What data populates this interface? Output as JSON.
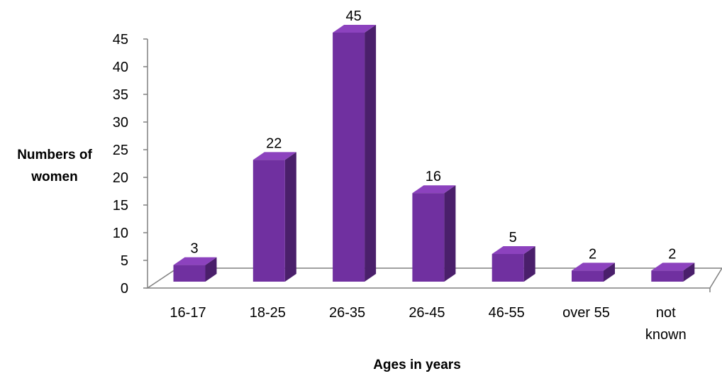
{
  "chart_data": {
    "type": "bar",
    "style": "3d-column",
    "categories": [
      "16-17",
      "18-25",
      "26-35",
      "26-45",
      "46-55",
      "over 55",
      "not known"
    ],
    "values": [
      3,
      22,
      45,
      16,
      5,
      2,
      2
    ],
    "data_labels": [
      "3",
      "22",
      "45",
      "16",
      "5",
      "2",
      "2"
    ],
    "title": "",
    "xlabel": "Ages in years",
    "ylabel_lines": [
      "Numbers of",
      "women"
    ],
    "ylim": [
      0,
      45
    ],
    "yticks": [
      "0",
      "5",
      "10",
      "15",
      "20",
      "25",
      "30",
      "35",
      "40",
      "45"
    ],
    "grid": false,
    "legend": "none",
    "colors": {
      "bar_front": "#7030A0",
      "bar_top": "#8C42BE",
      "bar_side": "#4A1F6B",
      "axis": "#808080",
      "floor": "#ffffff"
    }
  }
}
